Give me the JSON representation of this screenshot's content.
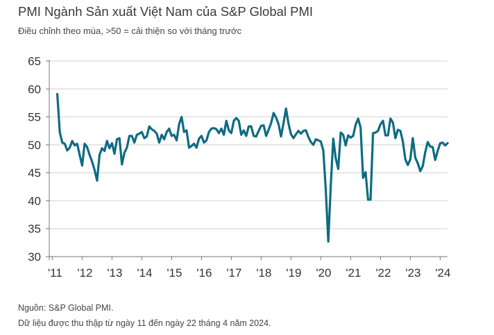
{
  "title": "PMI Ngành Sản xuất Việt Nam của S&P Global PMI",
  "subtitle": "Điều chỉnh theo mùa, >50 = cải thiện so với tháng trước",
  "footer": {
    "source": "Nguồn: S&P Global PMI.",
    "note": "Dữ liệu được thu thập từ ngày 11 đến ngày 22 tháng 4 năm 2024."
  },
  "chart_data": {
    "type": "line",
    "title": "PMI Ngành Sản xuất Việt Nam của S&P Global PMI",
    "xlabel": "",
    "ylabel": "",
    "ylim": [
      30,
      65
    ],
    "yticks": [
      "30",
      "35",
      "40",
      "45",
      "50",
      "55",
      "60",
      "65"
    ],
    "xticks": [
      "'11",
      "'12",
      "'13",
      "'14",
      "'15",
      "'16",
      "'17",
      "'18",
      "'19",
      "'20",
      "'21",
      "'22",
      "'23",
      "'24"
    ],
    "grid": true,
    "line_color": "#0e6b82",
    "x_start": "2011-03",
    "x_end": "2024-04",
    "frequency": "monthly",
    "series": [
      {
        "values": [
          59.1,
          52.3,
          50.4,
          50.2,
          49.0,
          49.5,
          50.7,
          49.9,
          50.2,
          48.2,
          46.3,
          50.2,
          49.6,
          48.2,
          47.0,
          45.5,
          43.6,
          48.2,
          49.4,
          48.9,
          50.7,
          49.4,
          50.3,
          48.4,
          51.0,
          51.2,
          46.5,
          48.6,
          49.5,
          51.6,
          51.6,
          50.4,
          51.8,
          52.0,
          52.3,
          51.2,
          51.5,
          53.3,
          52.8,
          52.5,
          52.0,
          50.4,
          51.8,
          51.0,
          52.3,
          52.9,
          51.6,
          51.8,
          50.8,
          53.7,
          55.0,
          52.3,
          52.6,
          49.5,
          49.8,
          50.2,
          49.5,
          51.1,
          51.6,
          50.4,
          50.8,
          52.3,
          52.9,
          53.0,
          52.8,
          52.1,
          52.9,
          51.8,
          54.3,
          52.6,
          52.1,
          54.3,
          54.8,
          54.3,
          51.8,
          52.6,
          51.6,
          53.3,
          53.3,
          51.6,
          51.5,
          52.5,
          53.4,
          53.5,
          51.6,
          52.7,
          53.9,
          55.7,
          54.9,
          53.7,
          51.5,
          53.9,
          56.5,
          53.8,
          51.9,
          51.2,
          51.9,
          52.5,
          52.0,
          52.5,
          52.6,
          51.4,
          50.5,
          50.0,
          51.0,
          50.8,
          50.6,
          49.0,
          41.9,
          32.7,
          42.7,
          51.1,
          47.6,
          45.7,
          52.2,
          51.8,
          49.9,
          51.7,
          51.3,
          51.6,
          53.6,
          54.7,
          53.1,
          44.1,
          45.1,
          40.2,
          40.2,
          52.1,
          52.2,
          52.5,
          53.7,
          54.3,
          51.7,
          51.7,
          54.7,
          54.0,
          51.2,
          52.7,
          52.5,
          50.6,
          47.4,
          46.4,
          47.4,
          51.2,
          47.7,
          46.7,
          45.3,
          46.2,
          48.7,
          50.5,
          49.7,
          49.6,
          47.3,
          48.9,
          50.3,
          50.4,
          49.9,
          50.3
        ]
      }
    ]
  }
}
